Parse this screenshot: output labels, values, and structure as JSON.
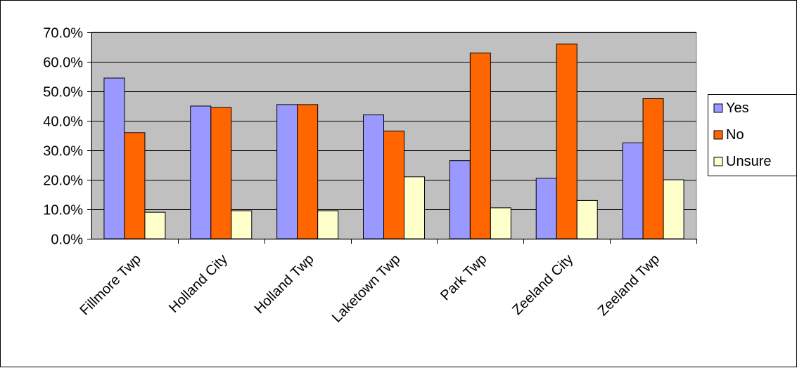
{
  "chart_data": {
    "type": "bar",
    "categories": [
      "Fillmore Twp",
      "Holland City",
      "Holland Twp",
      "Laketown Twp",
      "Park Twp",
      "Zeeland City",
      "Zeeland Twp"
    ],
    "series": [
      {
        "name": "Yes",
        "color": "#9999ff",
        "values": [
          54.5,
          45.0,
          45.5,
          42.0,
          26.5,
          20.5,
          32.5
        ]
      },
      {
        "name": "No",
        "color": "#ff6600",
        "values": [
          36.0,
          44.5,
          45.5,
          36.5,
          63.0,
          66.0,
          47.5
        ]
      },
      {
        "name": "Unsure",
        "color": "#ffffcc",
        "values": [
          9.0,
          9.5,
          9.5,
          21.0,
          10.5,
          13.0,
          20.0
        ]
      }
    ],
    "y_ticks": [
      "0.0%",
      "10.0%",
      "20.0%",
      "30.0%",
      "40.0%",
      "50.0%",
      "60.0%",
      "70.0%"
    ],
    "ylim": [
      0,
      70
    ],
    "grid": true,
    "plot_background": "#c0c0c0",
    "legend_position": "right",
    "title": "",
    "xlabel": "",
    "ylabel": ""
  }
}
